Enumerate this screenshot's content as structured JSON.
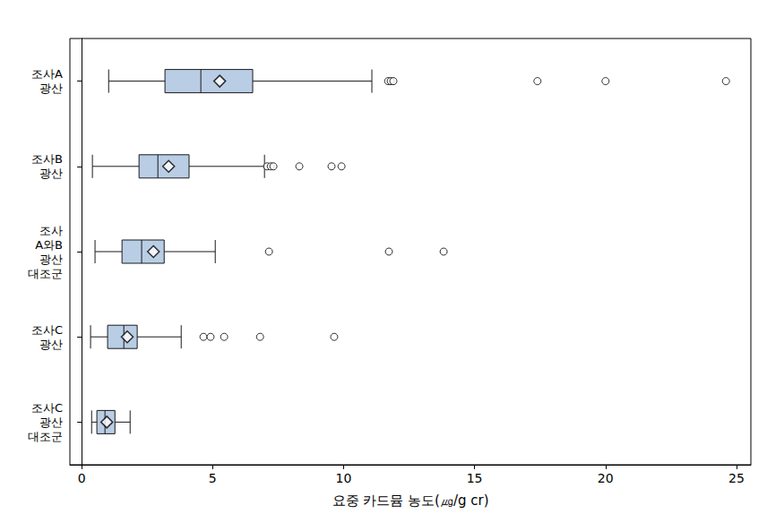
{
  "chart_data": {
    "type": "boxplot",
    "orientation": "horizontal",
    "xlabel": "요중 카드뮴 농도(㎍/g cr)",
    "categories": [
      "조사A\n광산",
      "조사B\n광산",
      "조사\nA와B\n광산\n대조군",
      "조사C\n광산",
      "조사C\n광산\n대조군"
    ],
    "values": [
      [
        1.03,
        3.18,
        4.55,
        6.53,
        11.08
      ],
      [
        0.41,
        2.19,
        2.91,
        4.1,
        6.98
      ],
      [
        0.51,
        1.54,
        2.29,
        3.15,
        5.1
      ],
      [
        0.34,
        0.99,
        1.61,
        2.12,
        3.8
      ],
      [
        0.38,
        0.58,
        0.89,
        1.27,
        1.85
      ]
    ],
    "means": [
      5.27,
      3.32,
      2.74,
      1.74,
      0.96
    ],
    "outliers": [
      [
        11.7,
        11.8,
        11.9,
        17.4,
        20.0,
        24.6
      ],
      [
        7.08,
        7.22,
        7.32,
        8.31,
        9.54,
        9.92
      ],
      [
        7.15,
        11.73,
        13.82
      ],
      [
        4.65,
        4.92,
        5.44,
        6.81,
        9.64
      ],
      []
    ],
    "color": "#b9cde5",
    "marker": "diamond",
    "xlim": [
      -0.45,
      25.55
    ],
    "xticks": [
      0,
      5,
      10,
      15,
      20,
      25
    ],
    "grid": false
  }
}
